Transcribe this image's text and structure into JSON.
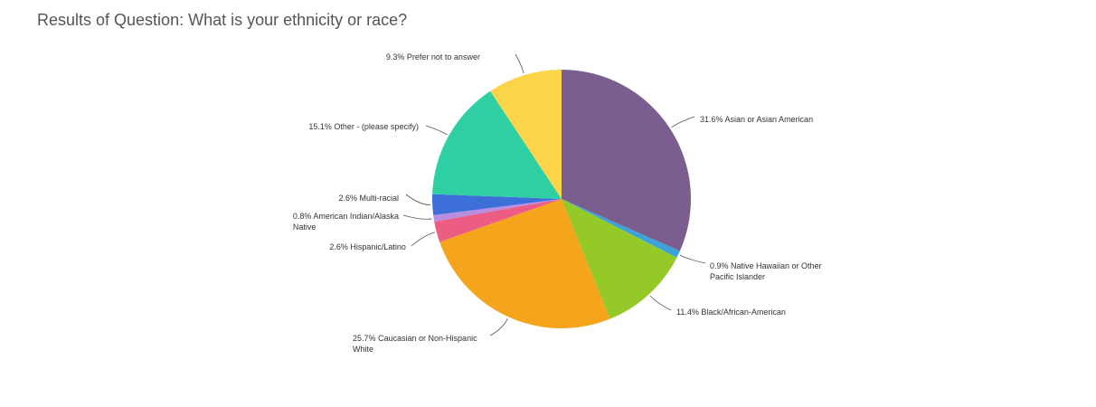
{
  "page": {
    "title": "Results of Question: What is your ethnicity or race?"
  },
  "chart_data": {
    "type": "pie",
    "slices": [
      {
        "label": "Asian or Asian American",
        "value": 31.6,
        "pct": "31.6%",
        "text": [
          "31.6% Asian or Asian American"
        ],
        "color": "#7b5e90"
      },
      {
        "label": "Native Hawaiian or Other Pacific Islander",
        "value": 0.9,
        "pct": "0.9%",
        "text": [
          "0.9% Native Hawaiian or Other",
          "Pacific Islander"
        ],
        "color": "#3ba3d9"
      },
      {
        "label": "Black/African-American",
        "value": 11.4,
        "pct": "11.4%",
        "text": [
          "11.4% Black/African-American"
        ],
        "color": "#95c927"
      },
      {
        "label": "Caucasian or Non-Hispanic White",
        "value": 25.7,
        "pct": "25.7%",
        "text": [
          "25.7% Caucasian or Non-Hispanic",
          "White"
        ],
        "color": "#f4a51c"
      },
      {
        "label": "Hispanic/Latino",
        "value": 2.6,
        "pct": "2.6%",
        "text": [
          "2.6% Hispanic/Latino"
        ],
        "color": "#ec5c83"
      },
      {
        "label": "American Indian/Alaska Native",
        "value": 0.8,
        "pct": "0.8%",
        "text": [
          "0.8% American Indian/Alaska",
          "Native"
        ],
        "color": "#b88fe0"
      },
      {
        "label": "Multi-racial",
        "value": 2.6,
        "pct": "2.6%",
        "text": [
          "2.6% Multi-racial"
        ],
        "color": "#3d6fd9"
      },
      {
        "label": "Other - (please specify)",
        "value": 15.1,
        "pct": "15.1%",
        "text": [
          "15.1% Other - (please specify)"
        ],
        "color": "#2dcfa3"
      },
      {
        "label": "Prefer not to answer",
        "value": 9.3,
        "pct": "9.3%",
        "text": [
          "9.3% Prefer not to answer"
        ],
        "color": "#fcd44a"
      }
    ]
  }
}
